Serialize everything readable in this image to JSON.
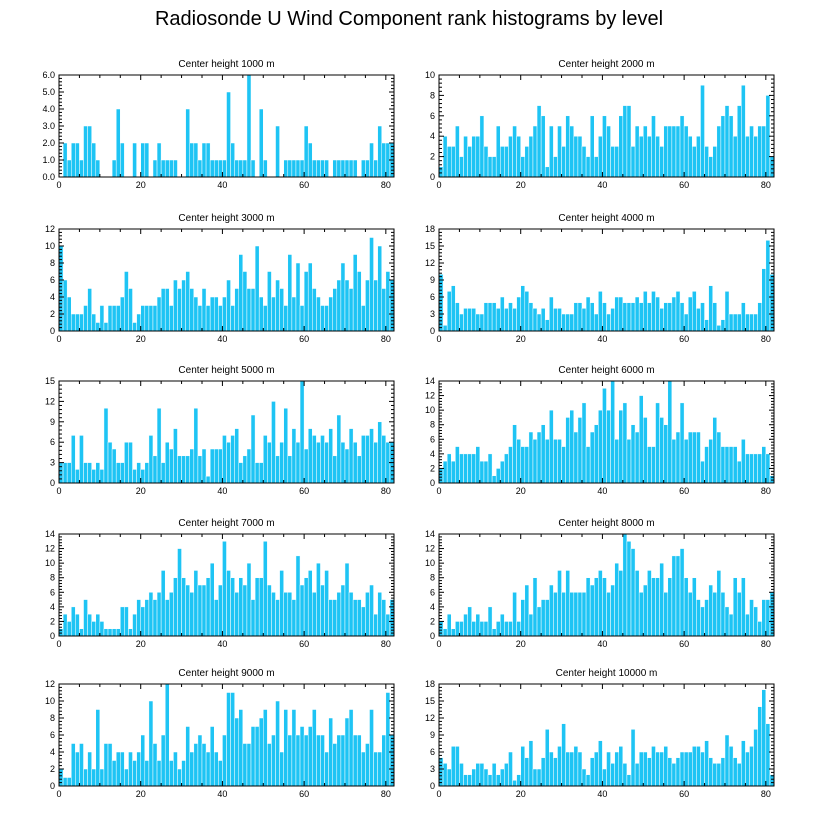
{
  "figure": {
    "title": "Radiosonde U Wind Component rank histograms by level",
    "bar_color": "#1ec4f4"
  },
  "chart_data": [
    {
      "type": "bar",
      "title": "Center height 1000 m",
      "xlim": [
        0,
        82
      ],
      "xticks": [
        0,
        20,
        40,
        60,
        80
      ],
      "ylim": [
        0,
        6
      ],
      "yticks": [
        "0.0",
        "1.0",
        "2.0",
        "3.0",
        "4.0",
        "5.0",
        "6.0"
      ],
      "values": [
        0,
        2,
        1,
        2,
        2,
        1,
        3,
        3,
        2,
        1,
        0,
        0,
        0,
        1,
        4,
        2,
        0,
        0,
        2,
        0,
        2,
        2,
        0,
        1,
        2,
        1,
        1,
        1,
        1,
        0,
        0,
        4,
        2,
        2,
        1,
        2,
        2,
        1,
        1,
        1,
        1,
        5,
        2,
        1,
        1,
        1,
        6,
        1,
        0,
        4,
        1,
        0,
        0,
        3,
        0,
        1,
        1,
        1,
        1,
        1,
        3,
        2,
        1,
        1,
        1,
        1,
        0,
        1,
        1,
        1,
        1,
        1,
        1,
        0,
        1,
        1,
        2,
        1,
        3,
        2,
        2,
        2
      ]
    },
    {
      "type": "bar",
      "title": "Center height 2000 m",
      "xlim": [
        0,
        82
      ],
      "xticks": [
        0,
        20,
        40,
        60,
        80
      ],
      "ylim": [
        0,
        10
      ],
      "yticks": [
        "0",
        "2",
        "4",
        "6",
        "8",
        "10"
      ],
      "values": [
        1,
        4,
        3,
        3,
        5,
        2,
        4,
        3,
        4,
        4,
        6,
        3,
        2,
        2,
        5,
        3,
        3,
        4,
        5,
        4,
        2,
        3,
        4,
        5,
        7,
        6,
        1,
        5,
        2,
        5,
        3,
        6,
        5,
        4,
        4,
        3,
        2,
        6,
        2,
        4,
        6,
        5,
        3,
        3,
        6,
        7,
        7,
        3,
        5,
        4,
        5,
        4,
        6,
        4,
        3,
        5,
        5,
        5,
        5,
        6,
        5,
        4,
        3,
        4,
        9,
        3,
        2,
        3,
        5,
        6,
        7,
        6,
        4,
        7,
        9,
        4,
        5,
        4,
        5,
        5,
        8,
        2
      ]
    },
    {
      "type": "bar",
      "title": "Center height 3000 m",
      "xlim": [
        0,
        82
      ],
      "xticks": [
        0,
        20,
        40,
        60,
        80
      ],
      "ylim": [
        0,
        12
      ],
      "yticks": [
        "0",
        "2",
        "4",
        "6",
        "8",
        "10",
        "12"
      ],
      "values": [
        10,
        6,
        4,
        2,
        2,
        2,
        3,
        5,
        2,
        1,
        3,
        1,
        3,
        3,
        3,
        4,
        7,
        5,
        1,
        2,
        3,
        3,
        3,
        3,
        4,
        5,
        5,
        3,
        6,
        5,
        6,
        7,
        5,
        4,
        3,
        5,
        3,
        4,
        4,
        3,
        4,
        6,
        3,
        5,
        9,
        7,
        5,
        5,
        10,
        4,
        3,
        7,
        4,
        6,
        5,
        3,
        9,
        4,
        8,
        3,
        7,
        8,
        5,
        4,
        3,
        3,
        4,
        5,
        6,
        8,
        6,
        5,
        9,
        7,
        3,
        6,
        11,
        6,
        10,
        5,
        7,
        6
      ]
    },
    {
      "type": "bar",
      "title": "Center height 4000 m",
      "xlim": [
        0,
        82
      ],
      "xticks": [
        0,
        20,
        40,
        60,
        80
      ],
      "ylim": [
        0,
        18
      ],
      "yticks": [
        "0",
        "3",
        "6",
        "9",
        "12",
        "15",
        "18"
      ],
      "values": [
        10,
        1,
        7,
        8,
        5,
        3,
        4,
        4,
        4,
        3,
        3,
        5,
        5,
        5,
        4,
        6,
        4,
        5,
        4,
        6,
        8,
        7,
        5,
        4,
        3,
        4,
        2,
        6,
        4,
        4,
        3,
        3,
        3,
        5,
        5,
        4,
        6,
        5,
        3,
        7,
        5,
        3,
        4,
        6,
        6,
        5,
        5,
        5,
        6,
        5,
        7,
        5,
        7,
        6,
        4,
        5,
        5,
        6,
        7,
        5,
        3,
        6,
        7,
        4,
        5,
        2,
        8,
        5,
        1,
        2,
        7,
        3,
        3,
        3,
        5,
        3,
        3,
        3,
        5,
        11,
        16,
        10
      ]
    },
    {
      "type": "bar",
      "title": "Center height 5000 m",
      "xlim": [
        0,
        82
      ],
      "xticks": [
        0,
        20,
        40,
        60,
        80
      ],
      "ylim": [
        0,
        15
      ],
      "yticks": [
        "0",
        "3",
        "6",
        "9",
        "12",
        "15"
      ],
      "values": [
        3,
        3,
        3,
        7,
        2,
        7,
        3,
        3,
        2,
        3,
        2,
        11,
        6,
        5,
        3,
        3,
        6,
        6,
        2,
        3,
        2,
        3,
        7,
        4,
        11,
        3,
        6,
        5,
        8,
        4,
        4,
        4,
        5,
        11,
        4,
        5,
        1,
        5,
        5,
        5,
        7,
        6,
        7,
        8,
        3,
        4,
        5,
        10,
        3,
        3,
        7,
        6,
        12,
        4,
        6,
        11,
        4,
        8,
        6,
        15,
        5,
        8,
        7,
        6,
        7,
        6,
        8,
        4,
        10,
        6,
        5,
        8,
        6,
        4,
        7,
        7,
        8,
        6,
        9,
        7,
        6,
        6
      ]
    },
    {
      "type": "bar",
      "title": "Center height 6000 m",
      "xlim": [
        0,
        82
      ],
      "xticks": [
        0,
        20,
        40,
        60,
        80
      ],
      "ylim": [
        0,
        14
      ],
      "yticks": [
        "0",
        "2",
        "4",
        "6",
        "8",
        "10",
        "12",
        "14"
      ],
      "values": [
        2,
        3,
        4,
        3,
        5,
        4,
        4,
        4,
        4,
        5,
        3,
        3,
        4,
        1,
        2,
        3,
        4,
        5,
        8,
        6,
        5,
        5,
        7,
        6,
        7,
        8,
        6,
        10,
        6,
        6,
        5,
        9,
        10,
        7,
        9,
        11,
        5,
        7,
        8,
        10,
        13,
        10,
        14,
        6,
        10,
        11,
        6,
        8,
        7,
        12,
        9,
        5,
        5,
        11,
        9,
        8,
        14,
        6,
        7,
        11,
        6,
        7,
        7,
        7,
        3,
        5,
        6,
        9,
        7,
        5,
        5,
        5,
        5,
        3,
        6,
        4,
        4,
        4,
        4,
        5,
        4,
        1
      ]
    },
    {
      "type": "bar",
      "title": "Center height 7000 m",
      "xlim": [
        0,
        82
      ],
      "xticks": [
        0,
        20,
        40,
        60,
        80
      ],
      "ylim": [
        0,
        14
      ],
      "yticks": [
        "0",
        "2",
        "4",
        "6",
        "8",
        "10",
        "12",
        "14"
      ],
      "values": [
        1,
        3,
        2,
        4,
        3,
        1,
        5,
        3,
        2,
        3,
        2,
        1,
        1,
        1,
        1,
        4,
        4,
        1,
        3,
        5,
        4,
        5,
        6,
        5,
        6,
        9,
        5,
        6,
        8,
        12,
        8,
        7,
        6,
        9,
        7,
        7,
        8,
        10,
        5,
        7,
        13,
        9,
        8,
        6,
        8,
        7,
        10,
        5,
        8,
        8,
        13,
        7,
        6,
        5,
        9,
        6,
        6,
        5,
        11,
        7,
        8,
        9,
        6,
        10,
        7,
        9,
        5,
        5,
        6,
        7,
        10,
        6,
        5,
        5,
        4,
        6,
        7,
        3,
        6,
        5,
        3,
        5
      ]
    },
    {
      "type": "bar",
      "title": "Center height 8000 m",
      "xlim": [
        0,
        82
      ],
      "xticks": [
        0,
        20,
        40,
        60,
        80
      ],
      "ylim": [
        0,
        14
      ],
      "yticks": [
        "0",
        "2",
        "4",
        "6",
        "8",
        "10",
        "12",
        "14"
      ],
      "values": [
        2,
        1,
        3,
        1,
        2,
        2,
        3,
        4,
        2,
        3,
        2,
        2,
        4,
        1,
        2,
        3,
        2,
        2,
        6,
        2,
        5,
        7,
        3,
        8,
        4,
        5,
        5,
        7,
        6,
        9,
        6,
        9,
        6,
        6,
        6,
        6,
        8,
        7,
        8,
        9,
        8,
        6,
        7,
        10,
        9,
        14,
        13,
        12,
        9,
        6,
        7,
        9,
        8,
        8,
        10,
        6,
        8,
        11,
        11,
        12,
        8,
        6,
        8,
        5,
        4,
        5,
        7,
        6,
        9,
        6,
        4,
        3,
        8,
        6,
        8,
        3,
        5,
        4,
        2,
        5,
        5,
        6
      ]
    },
    {
      "type": "bar",
      "title": "Center height 9000 m",
      "xlim": [
        0,
        82
      ],
      "xticks": [
        0,
        20,
        40,
        60,
        80
      ],
      "ylim": [
        0,
        12
      ],
      "yticks": [
        "0",
        "2",
        "4",
        "6",
        "8",
        "10",
        "12"
      ],
      "values": [
        2,
        1,
        1,
        5,
        4,
        5,
        2,
        4,
        2,
        9,
        2,
        5,
        5,
        3,
        4,
        4,
        2,
        4,
        3,
        4,
        6,
        3,
        10,
        5,
        3,
        6,
        12,
        3,
        4,
        2,
        3,
        7,
        4,
        5,
        6,
        5,
        4,
        7,
        4,
        3,
        6,
        11,
        11,
        8,
        9,
        5,
        5,
        7,
        7,
        8,
        9,
        5,
        6,
        10,
        4,
        9,
        6,
        9,
        6,
        7,
        6,
        7,
        9,
        6,
        6,
        4,
        8,
        5,
        6,
        6,
        8,
        9,
        6,
        6,
        4,
        5,
        9,
        4,
        4,
        6,
        11,
        6
      ]
    },
    {
      "type": "bar",
      "title": "Center height 10000 m",
      "xlim": [
        0,
        82
      ],
      "xticks": [
        0,
        20,
        40,
        60,
        80
      ],
      "ylim": [
        0,
        18
      ],
      "yticks": [
        "0",
        "3",
        "6",
        "9",
        "12",
        "15",
        "18"
      ],
      "values": [
        5,
        4,
        3,
        7,
        7,
        4,
        2,
        2,
        3,
        4,
        4,
        3,
        2,
        4,
        2,
        3,
        4,
        6,
        1,
        2,
        7,
        5,
        8,
        3,
        3,
        5,
        10,
        6,
        5,
        7,
        11,
        6,
        6,
        7,
        6,
        3,
        2,
        5,
        6,
        8,
        3,
        6,
        4,
        6,
        7,
        4,
        2,
        10,
        4,
        6,
        6,
        5,
        7,
        6,
        6,
        7,
        5,
        4,
        5,
        6,
        6,
        6,
        7,
        7,
        6,
        8,
        5,
        4,
        4,
        5,
        9,
        7,
        5,
        4,
        8,
        6,
        7,
        10,
        14,
        17,
        11,
        2
      ]
    }
  ]
}
